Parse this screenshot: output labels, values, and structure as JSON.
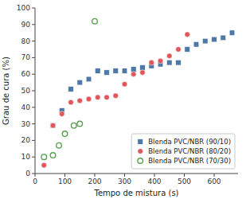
{
  "chart_data": {
    "type": "scatter",
    "xlabel": "Tempo de mistura (s)",
    "ylabel": "Grau de cura (%)",
    "xlim": [
      0,
      680
    ],
    "ylim": [
      0,
      100
    ],
    "xticks": [
      0,
      100,
      200,
      300,
      400,
      500,
      600
    ],
    "yticks": [
      0,
      10,
      20,
      30,
      40,
      50,
      60,
      70,
      80,
      90,
      100
    ],
    "grid": false,
    "legend": "lower right",
    "series": [
      {
        "name": "Blenda PVC/NBR (90/10)",
        "color": "#4e79a7",
        "marker": "square",
        "x": [
          30,
          60,
          90,
          120,
          150,
          180,
          210,
          240,
          270,
          300,
          330,
          360,
          390,
          420,
          450,
          480,
          510,
          540,
          570,
          600,
          630,
          660
        ],
        "values": [
          10,
          29,
          38,
          51,
          55,
          57,
          62,
          61,
          62,
          62,
          63,
          64,
          65,
          66,
          67,
          67,
          75,
          78,
          80,
          81,
          82,
          85
        ]
      },
      {
        "name": "Blenda PVC/NBR (80/20)",
        "color": "#e15759",
        "marker": "circle",
        "x": [
          30,
          60,
          90,
          120,
          150,
          180,
          210,
          240,
          270,
          300,
          330,
          360,
          390,
          420,
          450,
          480,
          510
        ],
        "values": [
          5,
          29,
          36,
          43,
          44,
          45,
          46,
          46,
          47,
          54,
          60,
          61,
          67,
          68,
          71,
          75,
          84
        ]
      },
      {
        "name": "Blenda PVC/NBR (70/30)",
        "color": "#59a14f",
        "marker": "open-circle",
        "x": [
          30,
          60,
          80,
          100,
          130,
          150,
          200
        ],
        "values": [
          10,
          11,
          17,
          24,
          29,
          30,
          92
        ]
      }
    ]
  }
}
